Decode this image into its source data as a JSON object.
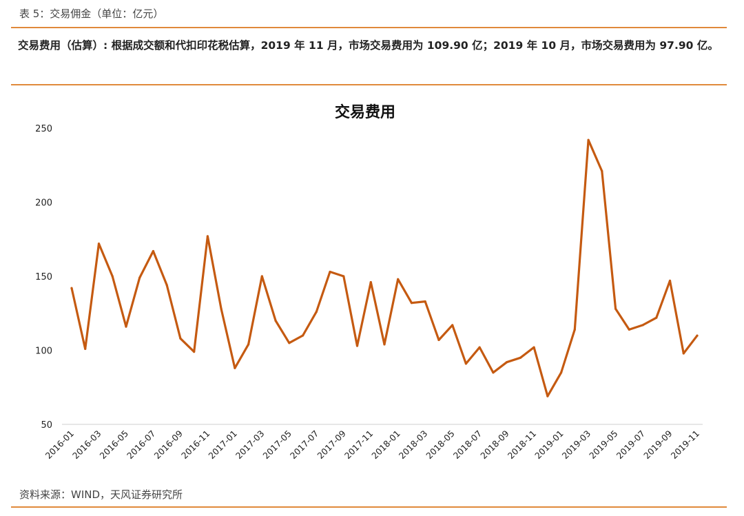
{
  "header": {
    "caption": "表 5：交易佣金（单位：亿元）",
    "summary": "交易费用（估算）: 根据成交额和代扣印花税估算，2019 年 11 月，市场交易费用为 109.90 亿；2019 年 10 月，市场交易费用为 97.90 亿。"
  },
  "footer": {
    "source": "资料来源：WIND，天风证券研究所"
  },
  "colors": {
    "line": "#c55a11",
    "rule": "#e0893a"
  },
  "chart_data": {
    "type": "line",
    "title": "交易费用",
    "xlabel": "",
    "ylabel": "",
    "ylim": [
      50,
      250
    ],
    "yticks": [
      50,
      100,
      150,
      200,
      250
    ],
    "grid": false,
    "x": [
      "2016-01",
      "2016-02",
      "2016-03",
      "2016-04",
      "2016-05",
      "2016-06",
      "2016-07",
      "2016-08",
      "2016-09",
      "2016-10",
      "2016-11",
      "2016-12",
      "2017-01",
      "2017-02",
      "2017-03",
      "2017-04",
      "2017-05",
      "2017-06",
      "2017-07",
      "2017-08",
      "2017-09",
      "2017-10",
      "2017-11",
      "2017-12",
      "2018-01",
      "2018-02",
      "2018-03",
      "2018-04",
      "2018-05",
      "2018-06",
      "2018-07",
      "2018-08",
      "2018-09",
      "2018-10",
      "2018-11",
      "2018-12",
      "2019-01",
      "2019-02",
      "2019-03",
      "2019-04",
      "2019-05",
      "2019-06",
      "2019-07",
      "2019-08",
      "2019-09",
      "2019-10",
      "2019-11"
    ],
    "x_tick_labels": [
      "2016-01",
      "2016-03",
      "2016-05",
      "2016-07",
      "2016-09",
      "2016-11",
      "2017-01",
      "2017-03",
      "2017-05",
      "2017-07",
      "2017-09",
      "2017-11",
      "2018-01",
      "2018-03",
      "2018-05",
      "2018-07",
      "2018-09",
      "2018-11",
      "2019-01",
      "2019-03",
      "2019-05",
      "2019-07",
      "2019-09",
      "2019-11"
    ],
    "series": [
      {
        "values": [
          142,
          101,
          172,
          150,
          116,
          149,
          167,
          144,
          108,
          99,
          177,
          128,
          88,
          104,
          150,
          120,
          105,
          110,
          126,
          153,
          150,
          103,
          146,
          104,
          148,
          132,
          133,
          107,
          117,
          91,
          102,
          85,
          92,
          95,
          102,
          69,
          85,
          114,
          242,
          221,
          128,
          114,
          117,
          122,
          147,
          97.9,
          109.9
        ]
      }
    ]
  }
}
